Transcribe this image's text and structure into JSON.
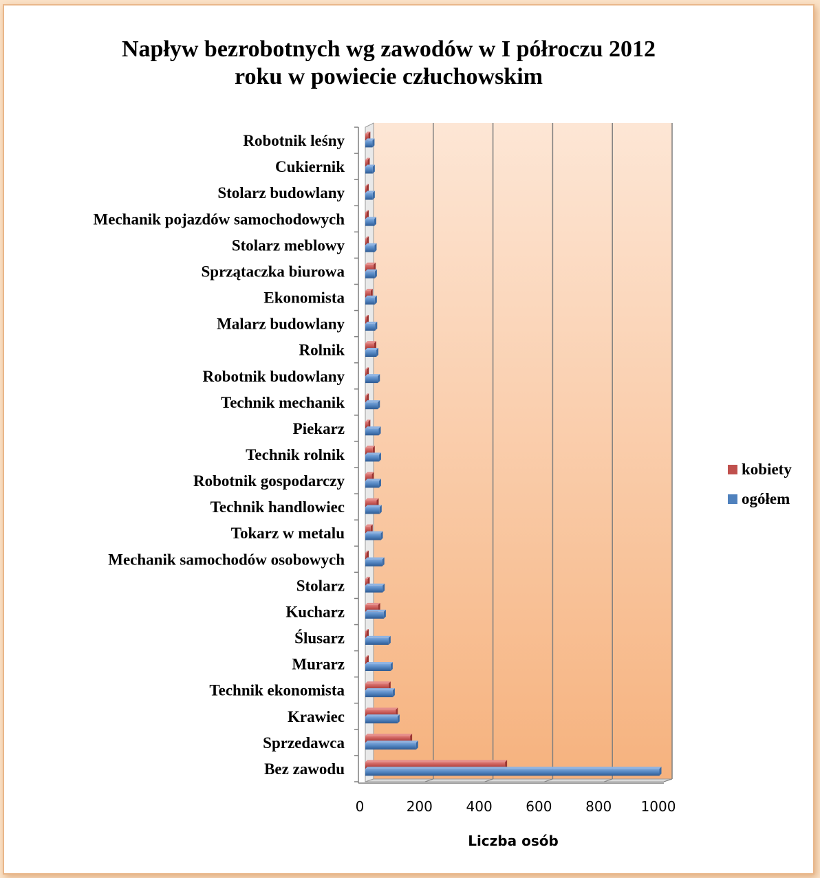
{
  "chart_data": {
    "type": "bar",
    "orientation": "horizontal",
    "title_line1": "Napływ bezrobotnych wg zawodów w I półroczu 2012",
    "title_line2": "roku w powiecie człuchowskim",
    "xlabel": "Liczba osób",
    "ylabel": "",
    "xlim": [
      0,
      1000
    ],
    "x_ticks": [
      "0",
      "200",
      "400",
      "600",
      "800",
      "1000"
    ],
    "grid": true,
    "legend_position": "right",
    "categories": [
      "Bez zawodu",
      "Sprzedawca",
      "Krawiec",
      "Technik ekonomista",
      "Murarz",
      "Ślusarz",
      "Kucharz",
      "Stolarz",
      "Mechanik samochodów osobowych",
      "Tokarz w metalu",
      "Technik handlowiec",
      "Robotnik gospodarczy",
      "Technik rolnik",
      "Piekarz",
      "Technik mechanik",
      "Robotnik budowlany",
      "Rolnik",
      "Malarz budowlany",
      "Ekonomista",
      "Sprzątaczka biurowa",
      "Stolarz meblowy",
      "Mechanik pojazdów samochodowych",
      "Stolarz budowlany",
      "Cukiernik",
      "Robotnik leśny"
    ],
    "series": [
      {
        "name": "ogółem",
        "color": "#4f81bd",
        "values": [
          985,
          170,
          108,
          92,
          85,
          78,
          62,
          58,
          57,
          52,
          48,
          46,
          46,
          45,
          42,
          42,
          37,
          33,
          32,
          32,
          31,
          30,
          25,
          25,
          24
        ]
      },
      {
        "name": "kobiety",
        "color": "#c0504d",
        "values": [
          468,
          150,
          102,
          78,
          3,
          2,
          43,
          8,
          2,
          18,
          38,
          22,
          25,
          10,
          5,
          5,
          30,
          3,
          18,
          28,
          5,
          2,
          3,
          8,
          10
        ]
      }
    ]
  }
}
